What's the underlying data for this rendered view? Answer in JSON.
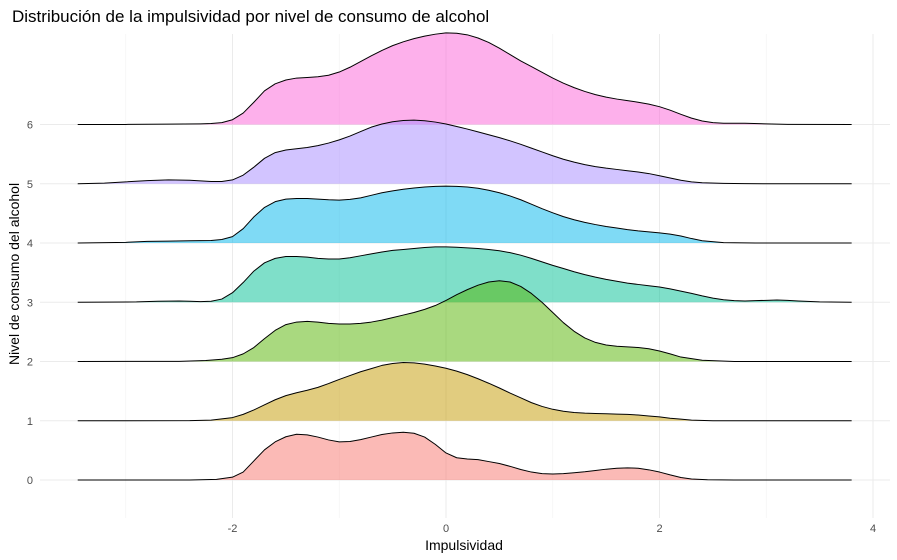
{
  "chart_data": {
    "type": "ridgeline",
    "title": "Distribución de la impulsividad por nivel de consumo de alcohol",
    "xlabel": "Impulsividad",
    "ylabel": "Nivel de consumo del alcohol",
    "xlim": [
      -3.45,
      3.8
    ],
    "x_ticks": [
      -2,
      0,
      2,
      4
    ],
    "x_tick_labels": [
      "-2",
      "0",
      "2",
      "4"
    ],
    "y_tick_labels": [
      "0",
      "1",
      "2",
      "3",
      "4",
      "5",
      "6"
    ],
    "grid": true,
    "fill_opacity": 0.5,
    "series": [
      {
        "level": "0",
        "color": "#F8766D",
        "x": [
          -3.45,
          -2.4,
          -2.15,
          -2.0,
          -1.9,
          -1.8,
          -1.7,
          -1.6,
          -1.5,
          -1.4,
          -1.3,
          -1.2,
          -1.1,
          -1.0,
          -0.9,
          -0.8,
          -0.7,
          -0.6,
          -0.5,
          -0.4,
          -0.3,
          -0.2,
          -0.1,
          0.0,
          0.1,
          0.2,
          0.3,
          0.4,
          0.5,
          0.6,
          0.7,
          0.8,
          0.9,
          1.0,
          1.1,
          1.2,
          1.3,
          1.4,
          1.5,
          1.6,
          1.7,
          1.8,
          1.9,
          2.0,
          2.1,
          2.2,
          2.3,
          2.45,
          2.7,
          3.8
        ],
        "density": [
          0,
          0.002,
          0.02,
          0.09,
          0.25,
          0.6,
          0.95,
          1.2,
          1.36,
          1.44,
          1.42,
          1.35,
          1.26,
          1.2,
          1.21,
          1.27,
          1.35,
          1.43,
          1.48,
          1.5,
          1.47,
          1.35,
          1.12,
          0.85,
          0.7,
          0.66,
          0.64,
          0.58,
          0.52,
          0.43,
          0.33,
          0.25,
          0.2,
          0.19,
          0.2,
          0.23,
          0.26,
          0.3,
          0.34,
          0.37,
          0.38,
          0.37,
          0.32,
          0.25,
          0.16,
          0.08,
          0.03,
          0.008,
          0,
          0
        ]
      },
      {
        "level": "1",
        "color": "#C49A00",
        "x": [
          -3.45,
          -2.4,
          -2.2,
          -2.0,
          -1.9,
          -1.8,
          -1.7,
          -1.6,
          -1.5,
          -1.4,
          -1.3,
          -1.2,
          -1.1,
          -1.0,
          -0.9,
          -0.8,
          -0.7,
          -0.6,
          -0.5,
          -0.4,
          -0.3,
          -0.2,
          -0.1,
          0.0,
          0.1,
          0.2,
          0.3,
          0.4,
          0.5,
          0.6,
          0.7,
          0.8,
          0.9,
          1.0,
          1.1,
          1.2,
          1.3,
          1.4,
          1.5,
          1.6,
          1.7,
          1.8,
          1.9,
          2.0,
          2.1,
          2.2,
          2.3,
          2.5,
          3.8
        ],
        "density": [
          0,
          0.004,
          0.02,
          0.1,
          0.2,
          0.34,
          0.5,
          0.66,
          0.79,
          0.88,
          0.96,
          1.05,
          1.17,
          1.3,
          1.42,
          1.54,
          1.64,
          1.74,
          1.8,
          1.83,
          1.82,
          1.78,
          1.72,
          1.65,
          1.56,
          1.45,
          1.32,
          1.18,
          1.03,
          0.87,
          0.72,
          0.57,
          0.45,
          0.36,
          0.3,
          0.26,
          0.24,
          0.23,
          0.22,
          0.21,
          0.2,
          0.18,
          0.15,
          0.12,
          0.08,
          0.05,
          0.02,
          0,
          0
        ]
      },
      {
        "level": "2",
        "color": "#53B400",
        "x": [
          -3.45,
          -2.5,
          -2.25,
          -2.1,
          -2.0,
          -1.9,
          -1.8,
          -1.7,
          -1.6,
          -1.5,
          -1.4,
          -1.3,
          -1.2,
          -1.1,
          -1.0,
          -0.9,
          -0.8,
          -0.7,
          -0.6,
          -0.5,
          -0.4,
          -0.3,
          -0.2,
          -0.1,
          0.0,
          0.1,
          0.2,
          0.3,
          0.4,
          0.5,
          0.6,
          0.7,
          0.8,
          0.9,
          1.0,
          1.1,
          1.2,
          1.3,
          1.4,
          1.5,
          1.6,
          1.7,
          1.8,
          1.9,
          2.0,
          2.1,
          2.2,
          2.4,
          2.7,
          3.8
        ],
        "density": [
          0,
          0.004,
          0.03,
          0.07,
          0.12,
          0.24,
          0.44,
          0.72,
          0.98,
          1.16,
          1.24,
          1.26,
          1.24,
          1.2,
          1.18,
          1.18,
          1.2,
          1.24,
          1.3,
          1.38,
          1.46,
          1.54,
          1.64,
          1.76,
          1.92,
          2.1,
          2.26,
          2.4,
          2.5,
          2.54,
          2.5,
          2.36,
          2.14,
          1.86,
          1.54,
          1.22,
          0.95,
          0.74,
          0.6,
          0.52,
          0.48,
          0.46,
          0.44,
          0.4,
          0.33,
          0.24,
          0.14,
          0.04,
          0,
          0
        ]
      },
      {
        "level": "3",
        "color": "#00C094",
        "x": [
          -3.45,
          -2.9,
          -2.7,
          -2.5,
          -2.4,
          -2.3,
          -2.2,
          -2.1,
          -2.0,
          -1.9,
          -1.8,
          -1.7,
          -1.6,
          -1.5,
          -1.4,
          -1.3,
          -1.2,
          -1.1,
          -1.0,
          -0.9,
          -0.8,
          -0.7,
          -0.6,
          -0.5,
          -0.4,
          -0.3,
          -0.2,
          -0.1,
          0.0,
          0.1,
          0.2,
          0.3,
          0.4,
          0.5,
          0.6,
          0.7,
          0.8,
          0.9,
          1.0,
          1.1,
          1.2,
          1.3,
          1.4,
          1.5,
          1.6,
          1.7,
          1.8,
          1.9,
          2.0,
          2.1,
          2.2,
          2.3,
          2.4,
          2.5,
          2.6,
          2.7,
          2.8,
          2.9,
          3.0,
          3.1,
          3.2,
          3.3,
          3.5,
          3.8
        ],
        "density": [
          0,
          0.01,
          0.03,
          0.04,
          0.03,
          0.02,
          0.03,
          0.1,
          0.3,
          0.62,
          0.98,
          1.24,
          1.38,
          1.44,
          1.44,
          1.42,
          1.38,
          1.36,
          1.36,
          1.4,
          1.46,
          1.52,
          1.58,
          1.63,
          1.66,
          1.69,
          1.72,
          1.74,
          1.74,
          1.73,
          1.71,
          1.69,
          1.66,
          1.62,
          1.56,
          1.48,
          1.38,
          1.27,
          1.16,
          1.06,
          0.96,
          0.87,
          0.79,
          0.72,
          0.66,
          0.6,
          0.56,
          0.52,
          0.48,
          0.42,
          0.35,
          0.28,
          0.2,
          0.13,
          0.08,
          0.05,
          0.04,
          0.05,
          0.06,
          0.07,
          0.06,
          0.04,
          0.01,
          0
        ]
      },
      {
        "level": "4",
        "color": "#00B6EB",
        "x": [
          -3.45,
          -3.0,
          -2.8,
          -2.6,
          -2.4,
          -2.2,
          -2.1,
          -2.0,
          -1.9,
          -1.8,
          -1.7,
          -1.6,
          -1.5,
          -1.4,
          -1.3,
          -1.2,
          -1.1,
          -1.0,
          -0.9,
          -0.8,
          -0.7,
          -0.6,
          -0.5,
          -0.4,
          -0.3,
          -0.2,
          -0.1,
          0.0,
          0.1,
          0.2,
          0.3,
          0.4,
          0.5,
          0.6,
          0.7,
          0.8,
          0.9,
          1.0,
          1.1,
          1.2,
          1.3,
          1.4,
          1.5,
          1.6,
          1.7,
          1.8,
          1.9,
          2.0,
          2.1,
          2.2,
          2.3,
          2.4,
          2.6,
          2.9,
          3.8
        ],
        "density": [
          0,
          0.02,
          0.05,
          0.06,
          0.07,
          0.08,
          0.11,
          0.2,
          0.45,
          0.82,
          1.12,
          1.3,
          1.38,
          1.4,
          1.4,
          1.38,
          1.36,
          1.35,
          1.37,
          1.42,
          1.5,
          1.58,
          1.64,
          1.69,
          1.73,
          1.76,
          1.78,
          1.79,
          1.78,
          1.76,
          1.72,
          1.66,
          1.58,
          1.48,
          1.36,
          1.22,
          1.08,
          0.95,
          0.83,
          0.73,
          0.65,
          0.58,
          0.52,
          0.47,
          0.42,
          0.38,
          0.35,
          0.32,
          0.28,
          0.22,
          0.14,
          0.07,
          0.01,
          0,
          0
        ]
      },
      {
        "level": "5",
        "color": "#A58AFF",
        "x": [
          -3.45,
          -3.2,
          -3.0,
          -2.8,
          -2.6,
          -2.4,
          -2.3,
          -2.2,
          -2.1,
          -2.0,
          -1.9,
          -1.8,
          -1.7,
          -1.6,
          -1.5,
          -1.4,
          -1.3,
          -1.2,
          -1.1,
          -1.0,
          -0.9,
          -0.8,
          -0.7,
          -0.6,
          -0.5,
          -0.4,
          -0.3,
          -0.2,
          -0.1,
          0.0,
          0.1,
          0.2,
          0.3,
          0.4,
          0.5,
          0.6,
          0.7,
          0.8,
          0.9,
          1.0,
          1.1,
          1.2,
          1.3,
          1.4,
          1.5,
          1.6,
          1.7,
          1.8,
          1.9,
          2.0,
          2.1,
          2.2,
          2.3,
          2.4,
          2.6,
          2.8,
          3.0,
          3.8
        ],
        "density": [
          0,
          0.02,
          0.06,
          0.1,
          0.12,
          0.11,
          0.09,
          0.07,
          0.07,
          0.12,
          0.27,
          0.52,
          0.8,
          0.98,
          1.06,
          1.1,
          1.14,
          1.2,
          1.28,
          1.38,
          1.5,
          1.64,
          1.78,
          1.88,
          1.95,
          1.99,
          2.0,
          1.98,
          1.94,
          1.88,
          1.8,
          1.72,
          1.63,
          1.54,
          1.45,
          1.35,
          1.24,
          1.12,
          1.0,
          0.88,
          0.77,
          0.68,
          0.6,
          0.54,
          0.49,
          0.45,
          0.41,
          0.37,
          0.32,
          0.25,
          0.18,
          0.11,
          0.06,
          0.03,
          0.01,
          0.005,
          0,
          0
        ]
      },
      {
        "level": "6",
        "color": "#FB61D7",
        "x": [
          -3.45,
          -3.0,
          -2.6,
          -2.3,
          -2.2,
          -2.1,
          -2.0,
          -1.9,
          -1.8,
          -1.7,
          -1.6,
          -1.5,
          -1.4,
          -1.3,
          -1.2,
          -1.1,
          -1.0,
          -0.9,
          -0.8,
          -0.7,
          -0.6,
          -0.5,
          -0.4,
          -0.3,
          -0.2,
          -0.1,
          0.0,
          0.1,
          0.2,
          0.3,
          0.4,
          0.5,
          0.6,
          0.7,
          0.8,
          0.9,
          1.0,
          1.1,
          1.2,
          1.3,
          1.4,
          1.5,
          1.6,
          1.7,
          1.8,
          1.9,
          2.0,
          2.1,
          2.2,
          2.3,
          2.4,
          2.5,
          2.6,
          2.8,
          3.0,
          3.2,
          3.8
        ],
        "density": [
          0,
          0.002,
          0.01,
          0.02,
          0.03,
          0.06,
          0.15,
          0.36,
          0.7,
          1.06,
          1.28,
          1.4,
          1.46,
          1.48,
          1.5,
          1.55,
          1.65,
          1.8,
          1.98,
          2.16,
          2.33,
          2.48,
          2.6,
          2.7,
          2.78,
          2.84,
          2.88,
          2.87,
          2.82,
          2.72,
          2.58,
          2.4,
          2.2,
          2.0,
          1.82,
          1.64,
          1.46,
          1.3,
          1.16,
          1.04,
          0.94,
          0.86,
          0.8,
          0.75,
          0.7,
          0.64,
          0.56,
          0.45,
          0.32,
          0.2,
          0.11,
          0.06,
          0.04,
          0.04,
          0.02,
          0.005,
          0
        ]
      }
    ]
  }
}
